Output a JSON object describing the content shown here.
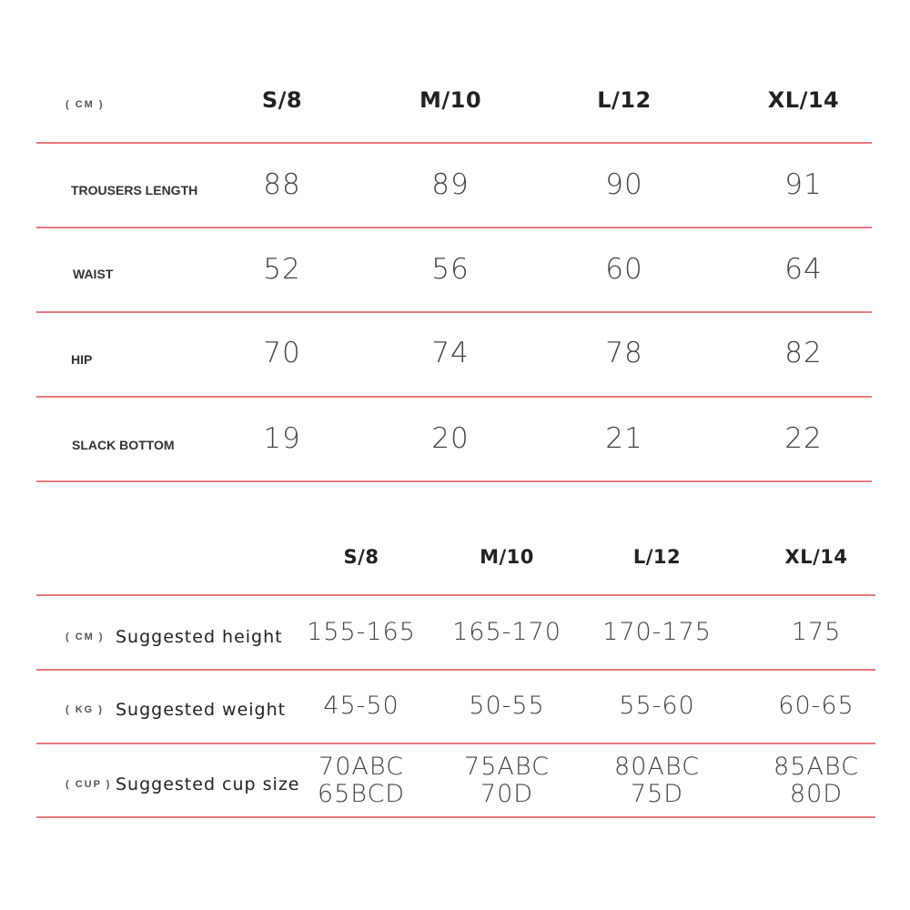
{
  "table1": {
    "unit": "( CM )",
    "sizes": [
      "S/8",
      "M/10",
      "L/12",
      "XL/14"
    ],
    "rows": [
      {
        "label": "TROUSERS LENGTH",
        "values": [
          "88",
          "89",
          "90",
          "91"
        ]
      },
      {
        "label": "WAIST",
        "values": [
          "52",
          "56",
          "60",
          "64"
        ]
      },
      {
        "label": "HIP",
        "values": [
          "70",
          "74",
          "78",
          "82"
        ]
      },
      {
        "label": "SLACK BOTTOM",
        "values": [
          "19",
          "20",
          "21",
          "22"
        ]
      }
    ]
  },
  "table2": {
    "sizes": [
      "S/8",
      "M/10",
      "L/12",
      "XL/14"
    ],
    "rows": [
      {
        "unit": "( CM )",
        "label": "Suggested height",
        "values": [
          "155-165",
          "165-170",
          "170-175",
          "175"
        ]
      },
      {
        "unit": "( KG )",
        "label": "Suggested weight",
        "values": [
          "45-50",
          "50-55",
          "55-60",
          "60-65"
        ]
      },
      {
        "unit": "( CUP )",
        "label": "Suggested cup size",
        "values": [
          "70ABC\n65BCD",
          "75ABC\n70D",
          "80ABC\n75D",
          "85ABC\n80D"
        ]
      }
    ]
  },
  "colors": {
    "divider": "#e87a7e",
    "text": "#222222"
  }
}
